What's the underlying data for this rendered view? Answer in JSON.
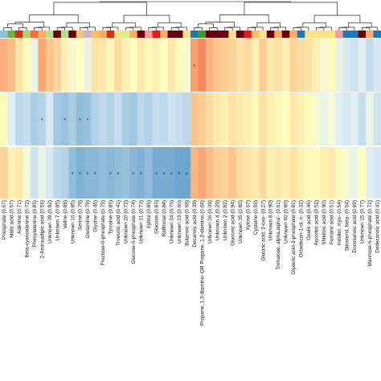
{
  "chart_data": {
    "type": "heatmap",
    "title": "",
    "xlabel": "",
    "ylabel": "",
    "rows": [
      "",
      "",
      ""
    ],
    "columns": [
      {
        "label": "Phosphate (0.67)",
        "values": [
          0.55,
          0.05,
          0.3
        ],
        "sig": [
          false,
          false,
          false
        ],
        "group_color": "#8fc1d9"
      },
      {
        "label": "Malic acid (0.57)",
        "values": [
          0.45,
          -0.15,
          0.1
        ],
        "sig": [
          false,
          false,
          false
        ],
        "group_color": "#6fae48"
      },
      {
        "label": "Adenine (0.71)",
        "values": [
          0.2,
          -0.35,
          0.15
        ],
        "sig": [
          false,
          false,
          false
        ],
        "group_color": "#d7301f"
      },
      {
        "label": "Beta-cyanoalanine (0.72)",
        "values": [
          0.05,
          -0.3,
          -0.05
        ],
        "sig": [
          false,
          false,
          false
        ],
        "group_color": "#a6d96a"
      },
      {
        "label": "Phenylalanine (0.85)",
        "values": [
          -0.1,
          -0.45,
          -0.25
        ],
        "sig": [
          false,
          false,
          false
        ],
        "group_color": "#f46d43"
      },
      {
        "label": "2-Aminoadipic acid (0.56)",
        "values": [
          0.6,
          -0.4,
          -0.1
        ],
        "sig": [
          false,
          true,
          false
        ],
        "group_color": "#fdae61"
      },
      {
        "label": "Unknown 39 (0.92)",
        "values": [
          0.4,
          -0.2,
          -0.2
        ],
        "sig": [
          false,
          false,
          false
        ],
        "group_color": "#b2df8a"
      },
      {
        "label": "Unknown 7 (0.85)",
        "values": [
          0.3,
          -0.5,
          -0.35
        ],
        "sig": [
          false,
          false,
          false
        ],
        "group_color": "#67000d"
      },
      {
        "label": "Valine (0.88)",
        "values": [
          0.1,
          -0.55,
          -0.4
        ],
        "sig": [
          false,
          true,
          false
        ],
        "group_color": "#b2df8a"
      },
      {
        "label": "Unknown 16 (0.85)",
        "values": [
          -0.05,
          -0.45,
          -0.6
        ],
        "sig": [
          false,
          false,
          true
        ],
        "group_color": "#67000d"
      },
      {
        "label": "Serine (0.79)",
        "values": [
          0.0,
          -0.6,
          -0.7
        ],
        "sig": [
          false,
          true,
          true
        ],
        "group_color": "#fdbf6f"
      },
      {
        "label": "Glutamine (0.79)",
        "values": [
          -0.1,
          -0.55,
          -0.65
        ],
        "sig": [
          false,
          true,
          true
        ],
        "group_color": "#cab2d6"
      },
      {
        "label": "Glycine (0.46)",
        "values": [
          0.2,
          -0.4,
          -0.65
        ],
        "sig": [
          false,
          false,
          true
        ],
        "group_color": "#fdbf6f"
      },
      {
        "label": "Fructose-6-phosphate (0.75)",
        "values": [
          0.15,
          -0.35,
          -0.6
        ],
        "sig": [
          false,
          false,
          false
        ],
        "group_color": "#fdae61"
      },
      {
        "label": "Tyrosine (0.86)",
        "values": [
          0.05,
          -0.4,
          -0.65
        ],
        "sig": [
          false,
          false,
          true
        ],
        "group_color": "#d7301f"
      },
      {
        "label": "Threonic acid (0.41)",
        "values": [
          0.25,
          -0.3,
          -0.6
        ],
        "sig": [
          false,
          false,
          true
        ],
        "group_color": "#fee08b"
      },
      {
        "label": "Unknown 20 (0.72)",
        "values": [
          0.1,
          -0.45,
          -0.55
        ],
        "sig": [
          false,
          false,
          false
        ],
        "group_color": "#d9ef8b"
      },
      {
        "label": "Glucose-6-phosphate (0.74)",
        "values": [
          0.0,
          -0.5,
          -0.65
        ],
        "sig": [
          false,
          false,
          true
        ],
        "group_color": "#fdae61"
      },
      {
        "label": "Unknown 31 (0.73)",
        "values": [
          0.15,
          -0.35,
          -0.7
        ],
        "sig": [
          false,
          false,
          true
        ],
        "group_color": "#67000d"
      },
      {
        "label": "Xylitol (0.85)",
        "values": [
          0.05,
          -0.4,
          -0.6
        ],
        "sig": [
          false,
          false,
          false
        ],
        "group_color": "#fb9a99"
      },
      {
        "label": "Glucose (0.83)",
        "values": [
          0.1,
          -0.3,
          -0.75
        ],
        "sig": [
          false,
          false,
          true
        ],
        "group_color": "#e31a1c"
      },
      {
        "label": "Raffinose (0.84)",
        "values": [
          0.0,
          -0.35,
          -0.75
        ],
        "sig": [
          false,
          false,
          true
        ],
        "group_color": "#fdae61"
      },
      {
        "label": "Unknown 34 (0.76)",
        "values": [
          0.15,
          -0.25,
          -0.75
        ],
        "sig": [
          false,
          false,
          true
        ],
        "group_color": "#67000d"
      },
      {
        "label": "Unknown 23 (0.60)",
        "values": [
          0.05,
          -0.3,
          -0.8
        ],
        "sig": [
          false,
          false,
          true
        ],
        "group_color": "#67000d"
      },
      {
        "label": "Butanoic acid (0.68)",
        "values": [
          -0.05,
          -0.35,
          -0.8
        ],
        "sig": [
          false,
          false,
          true
        ],
        "group_color": "#fee08b"
      },
      {
        "label": "Decanoic acid (0.39)",
        "values": [
          0.65,
          0.4,
          0.5
        ],
        "sig": [
          true,
          false,
          false
        ],
        "group_color": "#1f78b4"
      },
      {
        "label": "Propane, 1,3-diamino- OR Propane, 1,2-diamino (0.68)",
        "values": [
          0.8,
          0.35,
          0.6
        ],
        "sig": [
          false,
          false,
          false
        ],
        "group_color": "#33a02c"
      },
      {
        "label": "Unknown 36 (0.39)",
        "values": [
          0.5,
          0.25,
          0.45
        ],
        "sig": [
          false,
          false,
          false
        ],
        "group_color": "#67000d"
      },
      {
        "label": "Unknown 4 (0.29)",
        "values": [
          0.4,
          0.15,
          0.35
        ],
        "sig": [
          false,
          false,
          false
        ],
        "group_color": "#67000d"
      },
      {
        "label": "Unknown 2 (0.82)",
        "values": [
          0.35,
          0.1,
          0.3
        ],
        "sig": [
          false,
          false,
          false
        ],
        "group_color": "#67000d"
      },
      {
        "label": "Gluconic acid (0.94)",
        "values": [
          0.3,
          0.2,
          0.4
        ],
        "sig": [
          false,
          false,
          false
        ],
        "group_color": "#fee08b"
      },
      {
        "label": "Unknown 35 (0.80)",
        "values": [
          0.2,
          0.15,
          0.25
        ],
        "sig": [
          false,
          false,
          false
        ],
        "group_color": "#67000d"
      },
      {
        "label": "Xylose (0.67)",
        "values": [
          0.25,
          0.1,
          0.2
        ],
        "sig": [
          false,
          false,
          false
        ],
        "group_color": "#e31a1c"
      },
      {
        "label": "Cysteine (0.55)",
        "values": [
          0.1,
          0.05,
          0.15
        ],
        "sig": [
          false,
          false,
          false
        ],
        "group_color": "#fdbf6f"
      },
      {
        "label": "Glutaric acid, 2-oxo- (0.27)",
        "values": [
          0.35,
          0.2,
          0.25
        ],
        "sig": [
          false,
          false,
          false
        ],
        "group_color": "#fee08b"
      },
      {
        "label": "Unknown 8 (0.90)",
        "values": [
          0.15,
          0.1,
          0.1
        ],
        "sig": [
          false,
          false,
          false
        ],
        "group_color": "#67000d"
      },
      {
        "label": "Trehalose, alpha,alpha'- (0.61)",
        "values": [
          0.2,
          0.05,
          0.15
        ],
        "sig": [
          false,
          false,
          false
        ],
        "group_color": "#fdae61"
      },
      {
        "label": "Unknown 40 (0.80)",
        "values": [
          0.1,
          0.0,
          0.1
        ],
        "sig": [
          false,
          false,
          false
        ],
        "group_color": "#67000d"
      },
      {
        "label": "Glyceric acid-3-phosphate (0.82)",
        "values": [
          0.3,
          0.15,
          0.2
        ],
        "sig": [
          false,
          false,
          false
        ],
        "group_color": "#fdae61"
      },
      {
        "label": "Octadecan-1-ol, n- (0.32)",
        "values": [
          0.25,
          0.1,
          0.1
        ],
        "sig": [
          false,
          false,
          false
        ],
        "group_color": "#1f78b4"
      },
      {
        "label": "Oxalic acid (0.46)",
        "values": [
          0.2,
          0.05,
          0.05
        ],
        "sig": [
          false,
          false,
          false
        ],
        "group_color": "#fee08b"
      },
      {
        "label": "Ascorbic acid (0.52)",
        "values": [
          0.1,
          -0.05,
          0.05
        ],
        "sig": [
          false,
          false,
          false
        ],
        "group_color": "#fee08b"
      },
      {
        "label": "Shikimic acid (0.90)",
        "values": [
          -0.05,
          -0.1,
          0.1
        ],
        "sig": [
          false,
          false,
          false
        ],
        "group_color": "#fee08b"
      },
      {
        "label": "Fumaric acid (0.51)",
        "values": [
          0.05,
          -0.05,
          0.15
        ],
        "sig": [
          false,
          false,
          false
        ],
        "group_color": "#fee08b"
      },
      {
        "label": "Inositol, myo- (0.54)",
        "values": [
          -0.1,
          -0.15,
          0.05
        ],
        "sig": [
          false,
          false,
          false
        ],
        "group_color": "#fb9a99"
      },
      {
        "label": "Sitosterol, beta- (0.54)",
        "values": [
          -0.2,
          -0.2,
          -0.05
        ],
        "sig": [
          false,
          false,
          false
        ],
        "group_color": "#1f78b4"
      },
      {
        "label": "Docosanoic acid (0.69)",
        "values": [
          -0.25,
          -0.15,
          -0.1
        ],
        "sig": [
          false,
          false,
          false
        ],
        "group_color": "#1f78b4"
      },
      {
        "label": "Unknown 15 (0.77)",
        "values": [
          -0.15,
          -0.3,
          0.0
        ],
        "sig": [
          false,
          false,
          false
        ],
        "group_color": "#67000d"
      },
      {
        "label": "Mannose-6-phosphate (0.72)",
        "values": [
          -0.3,
          -0.1,
          -0.15
        ],
        "sig": [
          false,
          false,
          false
        ],
        "group_color": "#fdae61"
      },
      {
        "label": "Dodecanoic acid (0.41)",
        "values": [
          -0.2,
          -0.25,
          -0.2
        ],
        "sig": [
          false,
          false,
          false
        ],
        "group_color": "#1f78b4"
      }
    ]
  },
  "palette": {
    "cold": "#4a90c2",
    "neutral": "#ffffbf",
    "warm": "#f46d43",
    "dendrogram": "#000000",
    "significance_mark": "*"
  }
}
